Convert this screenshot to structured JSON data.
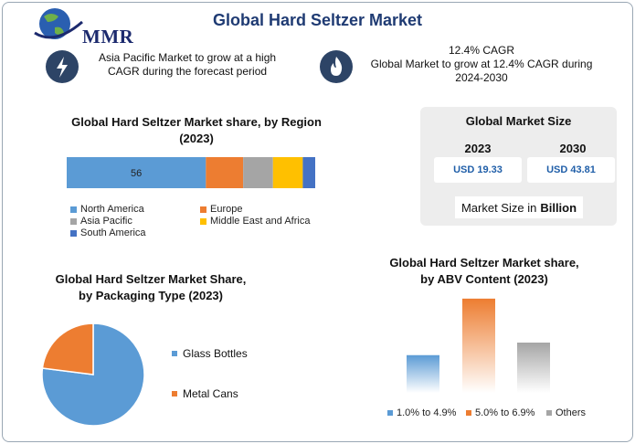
{
  "header": {
    "logo_text": "MMR",
    "title": "Global Hard Seltzer Market"
  },
  "info": {
    "left": {
      "icon": "lightning-icon",
      "line1": "Asia Pacific Market to grow at a high",
      "line2": "CAGR during the forecast period"
    },
    "right": {
      "icon": "flame-icon",
      "line1": "12.4% CAGR",
      "line2": "Global Market to grow at 12.4% CAGR during",
      "line3": "2024-2030"
    }
  },
  "market_size": {
    "title": "Global Market Size",
    "year1": "2023",
    "year2": "2030",
    "value1": "USD 19.33",
    "value2": "USD 43.81",
    "note_prefix": "Market Size in",
    "note_unit": "Billion"
  },
  "colors": {
    "north_america": "#5b9bd5",
    "europe": "#ed7d31",
    "asia_pacific": "#a5a5a5",
    "middle_east_africa": "#ffc000",
    "south_america": "#4472c4",
    "panel": "#ededed",
    "title": "#1f3b73"
  },
  "chart_data": [
    {
      "type": "bar",
      "subtype": "stacked-horizontal-100",
      "title_line1": "Global Hard Seltzer Market share, by Region",
      "title_line2": "(2023)",
      "series": [
        {
          "name": "North America",
          "values": [
            56
          ],
          "label": "56"
        },
        {
          "name": "Europe",
          "values": [
            15
          ]
        },
        {
          "name": "Asia Pacific",
          "values": [
            12
          ]
        },
        {
          "name": "Middle East and Africa",
          "values": [
            12
          ]
        },
        {
          "name": "South America",
          "values": [
            5
          ]
        }
      ],
      "legend_position": "bottom"
    },
    {
      "type": "pie",
      "title_line1": "Global Hard Seltzer Market Share,",
      "title_line2": "by Packaging Type (2023)",
      "categories": [
        "Glass Bottles",
        "Metal Cans"
      ],
      "values": [
        77,
        23
      ],
      "colors": [
        "#5b9bd5",
        "#ed7d31"
      ],
      "legend_position": "right"
    },
    {
      "type": "bar",
      "title_line1": "Global Hard Seltzer Market share,",
      "title_line2": "by ABV Content (2023)",
      "categories": [
        "1.0% to 4.9%",
        "5.0% to 6.9%",
        "Others"
      ],
      "values": [
        30,
        75,
        40
      ],
      "ylim": [
        0,
        80
      ],
      "colors": [
        "#5b9bd5",
        "#ed7d31",
        "#a5a5a5"
      ],
      "legend_position": "bottom"
    }
  ]
}
